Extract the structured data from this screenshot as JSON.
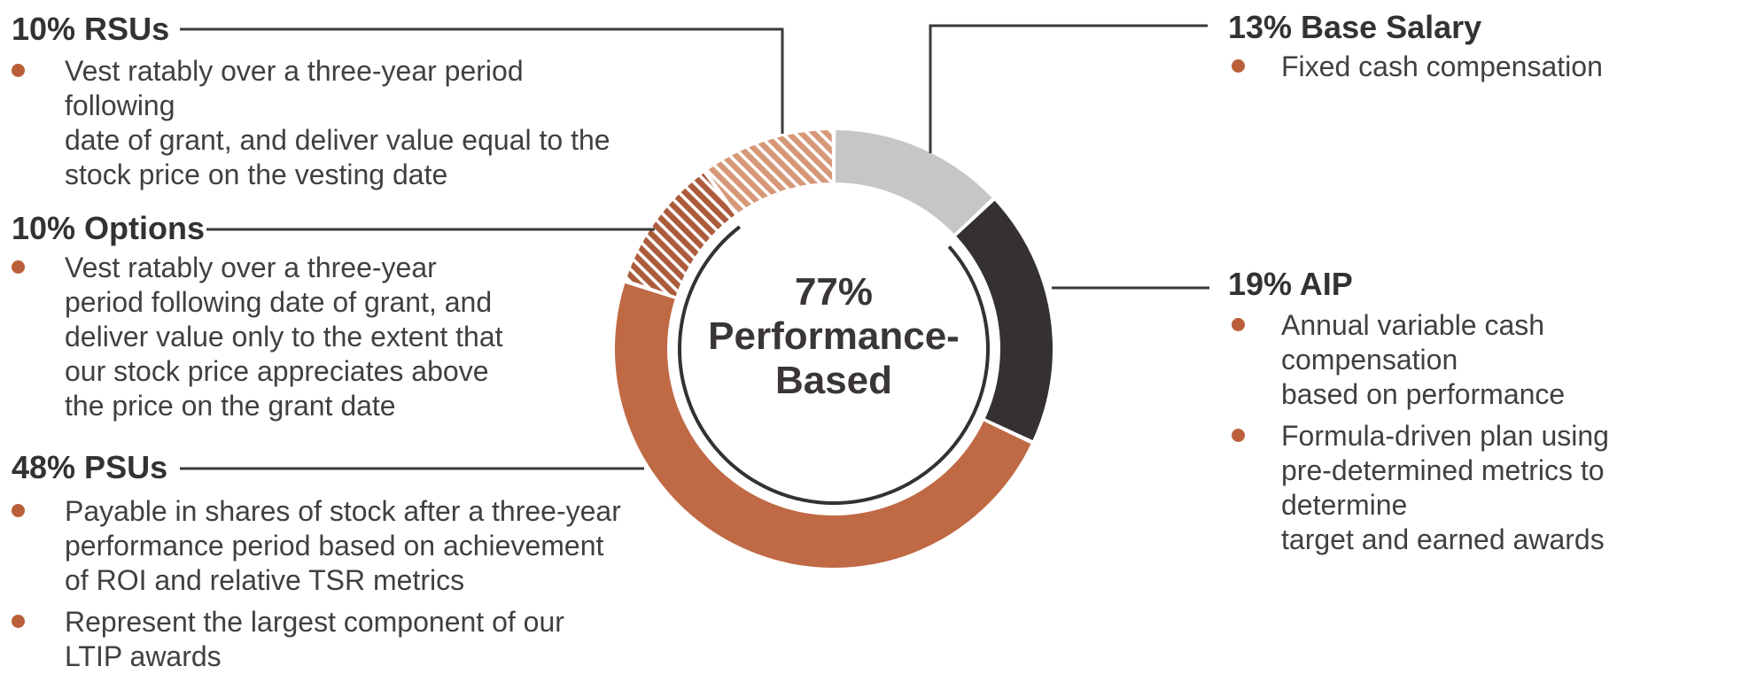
{
  "chart_data": {
    "type": "pie",
    "subtype": "donut",
    "center_label_lines": [
      "77%",
      "Performance-",
      "Based"
    ],
    "categories": [
      "Base Salary",
      "AIP",
      "PSUs",
      "Options",
      "RSUs"
    ],
    "values": [
      13,
      19,
      48,
      10,
      10
    ],
    "segments": [
      {
        "label": "Base Salary",
        "pct": 13,
        "color": "#C5C6C7",
        "hatch": false
      },
      {
        "label": "AIP",
        "pct": 19,
        "color": "#353132",
        "hatch": false
      },
      {
        "label": "PSUs",
        "pct": 48,
        "color": "#C06945",
        "hatch": false
      },
      {
        "label": "Options",
        "pct": 10,
        "color": "#AC5B3B",
        "hatch": true
      },
      {
        "label": "RSUs",
        "pct": 10,
        "color": "#D69878",
        "hatch": true
      }
    ],
    "performance_based_pct": 77,
    "performance_arc": {
      "start_pct": 13,
      "end_pct": 90,
      "color": "#353132"
    },
    "gap_color": "#FFFFFF",
    "legend_position": "none",
    "annotation_style": "callout-leader-lines"
  },
  "colors": {
    "bullet": "#B9603B",
    "leader_line": "#3A3A3A",
    "heading_text": "#323232",
    "body_text": "#404040"
  },
  "sections": {
    "rsus": {
      "heading": "10% RSUs",
      "items": [
        [
          "Vest ratably over a three-year period following",
          "date of grant, and deliver value equal to the",
          "stock price on the vesting date"
        ]
      ]
    },
    "options": {
      "heading": "10% Options",
      "items": [
        [
          "Vest ratably over a three-year",
          "period following date of grant, and",
          "deliver value only to the extent that",
          "our stock price appreciates above",
          "the price on the grant date"
        ]
      ]
    },
    "psus": {
      "heading": "48% PSUs",
      "items": [
        [
          "Payable in shares of stock after a three-year",
          "performance period based on achievement",
          "of ROI and relative TSR metrics"
        ],
        [
          "Represent the largest component of our",
          "LTIP awards"
        ]
      ]
    },
    "base_salary": {
      "heading": "13% Base Salary",
      "items": [
        [
          "Fixed cash compensation"
        ]
      ]
    },
    "aip": {
      "heading": "19% AIP",
      "items": [
        [
          "Annual variable cash compensation",
          "based on performance"
        ],
        [
          "Formula-driven plan using",
          "pre-determined metrics to determine",
          "target and earned awards"
        ]
      ]
    }
  }
}
